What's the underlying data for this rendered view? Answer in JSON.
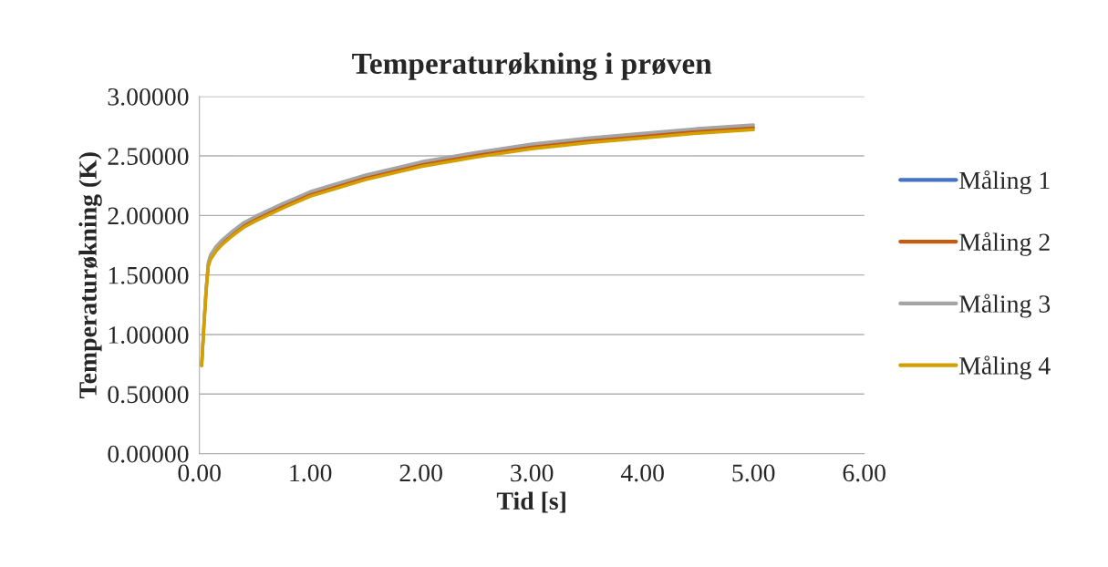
{
  "chart_data": {
    "type": "line",
    "title": "Temperaturøkning i prøven",
    "xlabel": "Tid [s]",
    "ylabel": "Temperaturøkning (K)",
    "x": [
      0.02,
      0.04,
      0.06,
      0.08,
      0.1,
      0.15,
      0.2,
      0.3,
      0.4,
      0.5,
      0.75,
      1,
      1.5,
      2,
      2.5,
      3,
      3.5,
      4,
      4.5,
      5
    ],
    "series": [
      {
        "name": "Måling 1",
        "color": "#4472c4",
        "values": [
          null,
          null,
          null,
          null,
          null,
          null,
          null,
          null,
          null,
          null,
          null,
          null,
          null,
          null,
          null,
          null,
          null,
          null,
          null,
          null
        ]
      },
      {
        "name": "Måling 2",
        "color": "#c55a11",
        "values": [
          0.74,
          1.07,
          1.37,
          1.59,
          1.65,
          1.72,
          1.77,
          1.85,
          1.92,
          1.97,
          2.08,
          2.18,
          2.32,
          2.43,
          2.51,
          2.58,
          2.63,
          2.67,
          2.71,
          2.74
        ]
      },
      {
        "name": "Måling 3",
        "color": "#a5a5a5",
        "values": [
          0.74,
          1.09,
          1.39,
          1.61,
          1.67,
          1.74,
          1.79,
          1.87,
          1.94,
          1.99,
          2.1,
          2.2,
          2.34,
          2.45,
          2.53,
          2.6,
          2.65,
          2.69,
          2.73,
          2.76
        ]
      },
      {
        "name": "Måling 4",
        "color": "#d4a000",
        "values": [
          0.74,
          1.05,
          1.35,
          1.57,
          1.63,
          1.7,
          1.75,
          1.83,
          1.9,
          1.95,
          2.06,
          2.16,
          2.3,
          2.41,
          2.49,
          2.56,
          2.61,
          2.65,
          2.69,
          2.72
        ]
      }
    ],
    "xlim": [
      0,
      6
    ],
    "xticks": [
      {
        "value": 0,
        "label": "0.00"
      },
      {
        "value": 1,
        "label": "1.00"
      },
      {
        "value": 2,
        "label": "2.00"
      },
      {
        "value": 3,
        "label": "3.00"
      },
      {
        "value": 4,
        "label": "4.00"
      },
      {
        "value": 5,
        "label": "5.00"
      },
      {
        "value": 6,
        "label": "6.00"
      }
    ],
    "ylim": [
      0,
      3
    ],
    "yticks": [
      {
        "value": 0,
        "label": "0.00000"
      },
      {
        "value": 0.5,
        "label": "0.50000"
      },
      {
        "value": 1,
        "label": "1.00000"
      },
      {
        "value": 1.5,
        "label": "1.50000"
      },
      {
        "value": 2,
        "label": "2.00000"
      },
      {
        "value": 2.5,
        "label": "2.50000"
      },
      {
        "value": 3,
        "label": "3.00000"
      }
    ],
    "grid": "y",
    "legend": "right",
    "marker": "none",
    "line_style": "solid"
  }
}
